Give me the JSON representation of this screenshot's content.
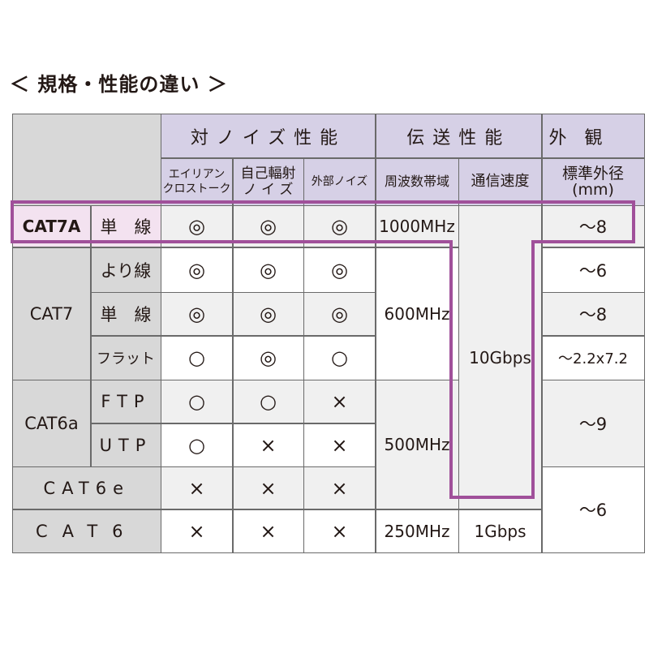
{
  "title": "＜ 規格・性能の違い ＞",
  "colors": {
    "header": "#d6d0e6",
    "label": "#d8d8d8",
    "highlight_outline": "#a0509a",
    "highlight_fill": "#f3e2f0"
  },
  "header": {
    "noise": "対ノイズ性能",
    "transmission": "伝送性能",
    "appearance": "外　観",
    "sub": {
      "alien_crosstalk_1": "エイリアン",
      "alien_crosstalk_2": "クロストーク",
      "self_radiation_1": "自己輻射",
      "self_radiation_2": "ノ イ ズ",
      "external_noise": "外部ノイズ",
      "frequency": "周波数帯域",
      "speed": "通信速度",
      "diameter_1": "標準外径",
      "diameter_2": "(mm)"
    }
  },
  "rows": {
    "cat7a": {
      "cat": "CAT7A",
      "type": "単　線",
      "alien": "◎",
      "self": "◎",
      "ext": "◎",
      "freq": "1000MHz",
      "dia": "～8"
    },
    "cat7": {
      "cat": "CAT7",
      "freq": "600MHz",
      "twisted": {
        "type": "より線",
        "alien": "◎",
        "self": "◎",
        "ext": "◎",
        "dia": "～6"
      },
      "solid": {
        "type": "単　線",
        "alien": "◎",
        "self": "◎",
        "ext": "◎",
        "dia": "～8"
      },
      "flat": {
        "type": "フラット",
        "alien": "○",
        "self": "◎",
        "ext": "○",
        "dia": "～2.2x7.2"
      }
    },
    "speed_10g": "10Gbps",
    "cat6a": {
      "cat": "CAT6a",
      "dia": "～9",
      "ftp": {
        "type": "FTP",
        "alien": "○",
        "self": "○",
        "ext": "×"
      },
      "utp": {
        "type": "UTP",
        "alien": "○",
        "self": "×",
        "ext": "×"
      }
    },
    "freq_500": "500MHz",
    "cat6e": {
      "cat": "CAT6e",
      "alien": "×",
      "self": "×",
      "ext": "×"
    },
    "dia_6": "～6",
    "cat6": {
      "cat": "CAT6",
      "alien": "×",
      "self": "×",
      "ext": "×",
      "freq": "250MHz",
      "speed": "1Gbps"
    }
  }
}
